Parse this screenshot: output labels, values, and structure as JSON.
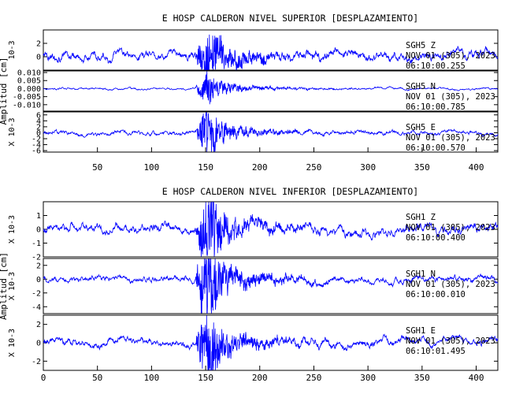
{
  "chart_data": [
    {
      "type": "line",
      "title": "E HOSP CALDERON NIVEL SUPERIOR [DESPLAZAMIENTO]",
      "ylabel": "Amplitud [cm]",
      "xlim": [
        0,
        420
      ],
      "x_ticks": [
        "50",
        "100",
        "150",
        "200",
        "250",
        "300",
        "350",
        "400"
      ],
      "line_color": "#0000ff",
      "series": [
        {
          "name": "SGH5 Z",
          "station": "SGH5   Z",
          "date": "NOV 01 (305), 2023",
          "time": "06:10:00.255",
          "scale": "10-3",
          "ylim": [
            -2,
            4
          ],
          "y_ticks": [
            "2",
            "0"
          ],
          "noise_amplitude": 0.9,
          "event_amplitude": 3.4
        },
        {
          "name": "SGH5 N",
          "station": "SGH5   N",
          "date": "NOV 01 (305), 2023",
          "time": "06:10:00.785",
          "scale": "",
          "ylim": [
            -0.014,
            0.011
          ],
          "y_ticks": [
            "0.010",
            "0.005",
            "0.000",
            "-0.005",
            "-0.010"
          ],
          "noise_amplitude": 0.0008,
          "event_amplitude": 0.006
        },
        {
          "name": "SGH5 E",
          "station": "SGH5   E",
          "date": "NOV 01 (305), 2023",
          "time": "06:10:00.570",
          "scale": "X 10-3",
          "ylim": [
            -6.5,
            7
          ],
          "y_ticks": [
            "6",
            "4",
            "2",
            "0",
            "-2",
            "-4",
            "-6"
          ],
          "noise_amplitude": 0.9,
          "event_amplitude": 5.5
        }
      ]
    },
    {
      "type": "line",
      "title": "E HOSP CALDERON NIVEL INFERIOR [DESPLAZAMIENTO]",
      "ylabel": "Amplitud [cm]",
      "xlim": [
        0,
        420
      ],
      "x_ticks": [
        "0",
        "50",
        "100",
        "150",
        "200",
        "250",
        "300",
        "350",
        "400"
      ],
      "line_color": "#0000ff",
      "series": [
        {
          "name": "SGH1 Z",
          "station": "SGH1   Z",
          "date": "NOV 01 (305), 2023",
          "time": "06:10:00.400",
          "scale": "X 10-3",
          "ylim": [
            -2,
            2
          ],
          "y_ticks": [
            "1",
            "0",
            "-1",
            "-2"
          ],
          "noise_amplitude": 0.45,
          "event_amplitude": 1.9
        },
        {
          "name": "SGH1 N",
          "station": "SGH1   N",
          "date": "NOV 01 (305), 2023",
          "time": "06:10:00.010",
          "scale": "X 10-3",
          "ylim": [
            -5,
            3
          ],
          "y_ticks": [
            "2",
            "0",
            "-2",
            "-4"
          ],
          "noise_amplitude": 0.6,
          "event_amplitude": 3.8
        },
        {
          "name": "SGH1 E",
          "station": "SGH1   E",
          "date": "NOV 01 (305), 2023",
          "time": "06:10:01.495",
          "scale": "X 10-3",
          "ylim": [
            -3,
            3
          ],
          "y_ticks": [
            "2",
            "0",
            "-2"
          ],
          "noise_amplitude": 0.55,
          "event_amplitude": 2.7
        }
      ]
    }
  ]
}
